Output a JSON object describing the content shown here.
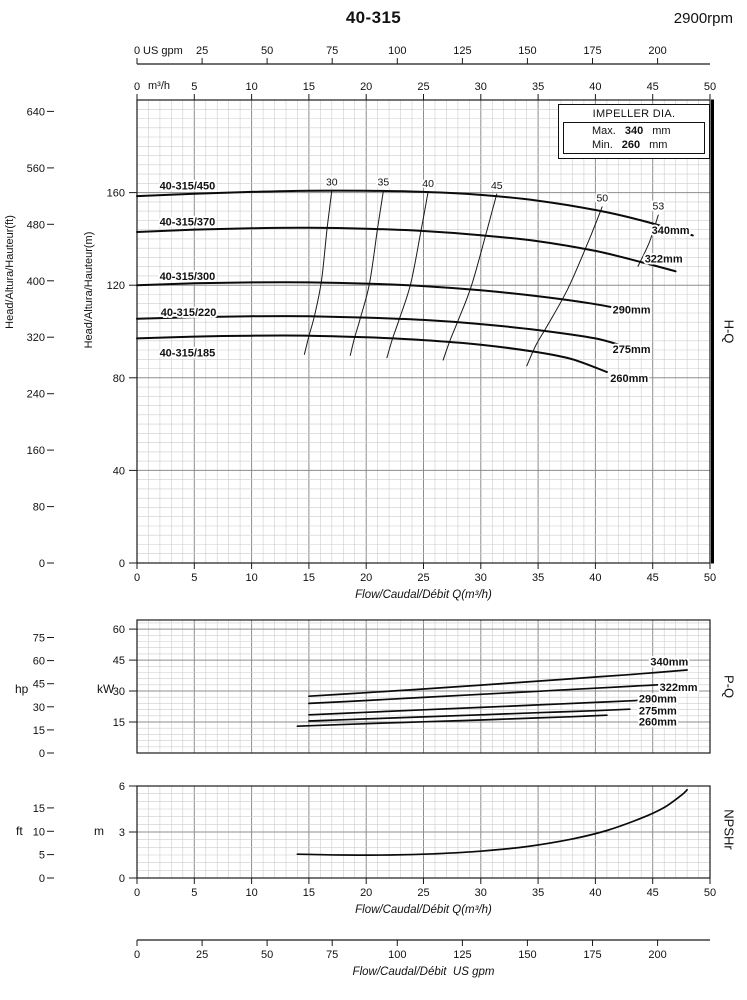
{
  "header": {
    "title": "40-315",
    "rpm": "2900rpm"
  },
  "impeller_box": {
    "title": "IMPELLER DIA.",
    "rows": [
      {
        "label": "Max.",
        "value": "340",
        "unit": "mm"
      },
      {
        "label": "Min.",
        "value": "260",
        "unit": "mm"
      }
    ]
  },
  "conversions": {
    "gpm_per_m3h": 4.4029,
    "ft_per_m": 3.2808,
    "kw_per_hp": 0.7457
  },
  "chart_data": [
    {
      "id": "hq",
      "type": "line",
      "title": "H-Q",
      "xlabel": "Flow/Caudal/Débit Q(m³/h)",
      "x_unit_label": "m³/h",
      "top_axis_unit": "US gpm",
      "ylabel_outer": "Head/Altura/Hauteur(ft)",
      "ylabel_inner": "Head/Altura/Hauteur(m)",
      "xlim": [
        0,
        50
      ],
      "ylim": [
        0,
        200
      ],
      "x_ticks": [
        0,
        5,
        10,
        15,
        20,
        25,
        30,
        35,
        40,
        45,
        50
      ],
      "gpm_ticks": [
        0,
        25,
        50,
        75,
        100,
        125,
        150,
        175,
        200
      ],
      "m_ticks": [
        0,
        40,
        80,
        120,
        160
      ],
      "ft_ticks": [
        0,
        80,
        160,
        240,
        320,
        400,
        480,
        560,
        640
      ],
      "grid": {
        "minor_x": 1,
        "major_x": 5,
        "minor_y": 4,
        "major_y": 40
      },
      "series": [
        {
          "name": "340mm",
          "model": "40-315/450",
          "points": [
            [
              0,
              158.5
            ],
            [
              5,
              159.5
            ],
            [
              10,
              160.3
            ],
            [
              15,
              160.8
            ],
            [
              20,
              160.8
            ],
            [
              25,
              160.3
            ],
            [
              30,
              159.0
            ],
            [
              35,
              156.5
            ],
            [
              40,
              152.5
            ],
            [
              44,
              148.0
            ],
            [
              48.5,
              141.5
            ]
          ],
          "label_at": [
            44.9,
            143.8
          ],
          "model_label_at": [
            4.4,
            163.0
          ]
        },
        {
          "name": "322mm",
          "model": "40-315/370",
          "points": [
            [
              0,
              143.0
            ],
            [
              5,
              144.0
            ],
            [
              10,
              144.6
            ],
            [
              15,
              144.8
            ],
            [
              20,
              144.4
            ],
            [
              25,
              143.4
            ],
            [
              30,
              141.6
            ],
            [
              35,
              139.0
            ],
            [
              40,
              134.8
            ],
            [
              44,
              130.0
            ],
            [
              47,
              126.0
            ]
          ],
          "label_at": [
            44.3,
            131.5
          ],
          "model_label_at": [
            4.4,
            147.5
          ]
        },
        {
          "name": "290mm",
          "model": "40-315/300",
          "points": [
            [
              0,
              120.0
            ],
            [
              5,
              120.8
            ],
            [
              10,
              121.2
            ],
            [
              15,
              121.2
            ],
            [
              20,
              120.7
            ],
            [
              25,
              119.6
            ],
            [
              30,
              117.8
            ],
            [
              35,
              115.2
            ],
            [
              40,
              111.8
            ],
            [
              44,
              108.0
            ]
          ],
          "label_at": [
            41.5,
            109.5
          ],
          "model_label_at": [
            4.4,
            124.0
          ]
        },
        {
          "name": "275mm",
          "model": "40-315/220",
          "points": [
            [
              0,
              105.5
            ],
            [
              5,
              106.2
            ],
            [
              10,
              106.6
            ],
            [
              15,
              106.6
            ],
            [
              20,
              106.0
            ],
            [
              25,
              105.0
            ],
            [
              30,
              103.2
            ],
            [
              35,
              100.6
            ],
            [
              40,
              97.0
            ],
            [
              42.5,
              93.5
            ]
          ],
          "label_at": [
            41.5,
            92.5
          ],
          "model_label_at": [
            4.5,
            108.5
          ]
        },
        {
          "name": "260mm",
          "model": "40-315/185",
          "points": [
            [
              0,
              97.0
            ],
            [
              5,
              97.8
            ],
            [
              10,
              98.2
            ],
            [
              15,
              98.2
            ],
            [
              20,
              97.5
            ],
            [
              25,
              96.3
            ],
            [
              30,
              94.3
            ],
            [
              35,
              91.0
            ],
            [
              38,
              88.0
            ],
            [
              41,
              82.5
            ]
          ],
          "label_at": [
            41.3,
            80.0
          ],
          "model_label_at": [
            4.4,
            91.0
          ]
        }
      ],
      "efficiency_lines": [
        {
          "label": "30",
          "points": [
            [
              17.0,
              160.8
            ],
            [
              16.6,
              145
            ],
            [
              16.1,
              122
            ],
            [
              15.5,
              107
            ],
            [
              15.0,
              98
            ],
            [
              14.6,
              90
            ]
          ]
        },
        {
          "label": "35",
          "points": [
            [
              21.5,
              160.8
            ],
            [
              21.0,
              145
            ],
            [
              20.3,
              121
            ],
            [
              19.5,
              106
            ],
            [
              19.0,
              97.5
            ],
            [
              18.6,
              89.5
            ]
          ]
        },
        {
          "label": "40",
          "points": [
            [
              25.4,
              160.3
            ],
            [
              24.8,
              144
            ],
            [
              23.9,
              121
            ],
            [
              22.9,
              105.5
            ],
            [
              22.3,
              97
            ],
            [
              21.8,
              88.5
            ]
          ]
        },
        {
          "label": "45",
          "points": [
            [
              31.4,
              159.5
            ],
            [
              30.5,
              143
            ],
            [
              29.2,
              120
            ],
            [
              28.0,
              104.5
            ],
            [
              27.3,
              96
            ],
            [
              26.7,
              87.5
            ]
          ]
        },
        {
          "label": "50",
          "points": [
            [
              40.6,
              154.0
            ],
            [
              39.4,
              139
            ],
            [
              37.6,
              118.5
            ],
            [
              35.8,
              102.5
            ],
            [
              34.8,
              94
            ],
            [
              34.0,
              85
            ]
          ]
        },
        {
          "label": "53",
          "points": [
            [
              45.5,
              150.5
            ],
            [
              44.7,
              138.5
            ],
            [
              43.7,
              128.0
            ]
          ]
        }
      ]
    },
    {
      "id": "pq",
      "type": "line",
      "title": "P-Q",
      "ylabel_outer": "hp",
      "ylabel_inner": "kW",
      "xlim": [
        0,
        50
      ],
      "ylim": [
        0,
        64.4
      ],
      "kw_ticks": [
        15,
        30,
        45,
        60
      ],
      "hp_ticks": [
        0,
        15,
        30,
        45,
        60,
        75
      ],
      "grid": {
        "minor_x": 1,
        "major_x": 5,
        "minor_y": 3,
        "major_y": 15
      },
      "series": [
        {
          "name": "340mm",
          "points": [
            [
              15,
              27.5
            ],
            [
              20,
              29.2
            ],
            [
              25,
              31.0
            ],
            [
              30,
              32.9
            ],
            [
              35,
              34.8
            ],
            [
              40,
              36.8
            ],
            [
              44,
              38.4
            ],
            [
              48,
              40.2
            ]
          ],
          "label_at": [
            44.8,
            44.3
          ]
        },
        {
          "name": "322mm",
          "points": [
            [
              15,
              24.0
            ],
            [
              20,
              25.4
            ],
            [
              25,
              26.9
            ],
            [
              30,
              28.4
            ],
            [
              35,
              29.9
            ],
            [
              40,
              31.4
            ],
            [
              44,
              32.6
            ],
            [
              47,
              33.5
            ]
          ],
          "label_at": [
            45.6,
            32.0
          ]
        },
        {
          "name": "290mm",
          "points": [
            [
              15,
              18.5
            ],
            [
              20,
              19.7
            ],
            [
              25,
              20.9
            ],
            [
              30,
              22.1
            ],
            [
              35,
              23.3
            ],
            [
              40,
              24.5
            ],
            [
              44,
              25.5
            ]
          ],
          "label_at": [
            43.8,
            26.3
          ]
        },
        {
          "name": "275mm",
          "points": [
            [
              15,
              15.5
            ],
            [
              20,
              16.5
            ],
            [
              25,
              17.5
            ],
            [
              30,
              18.5
            ],
            [
              35,
              19.5
            ],
            [
              40,
              20.5
            ],
            [
              43,
              21.2
            ]
          ],
          "label_at": [
            43.8,
            20.6
          ]
        },
        {
          "name": "260mm",
          "points": [
            [
              14,
              13.0
            ],
            [
              20,
              14.2
            ],
            [
              25,
              15.1
            ],
            [
              30,
              16.0
            ],
            [
              35,
              17.0
            ],
            [
              38,
              17.6
            ],
            [
              41,
              18.3
            ]
          ],
          "label_at": [
            43.8,
            15.2
          ]
        }
      ]
    },
    {
      "id": "npsh",
      "type": "line",
      "title": "NPSHr",
      "xlabel": "Flow/Caudal/Débit Q(m³/h)",
      "ylabel_outer": "ft",
      "ylabel_inner": "m",
      "xlim": [
        0,
        50
      ],
      "ylim": [
        0,
        6
      ],
      "x_ticks": [
        0,
        5,
        10,
        15,
        20,
        25,
        30,
        35,
        40,
        45,
        50
      ],
      "m_ticks": [
        0,
        3,
        6
      ],
      "ft_ticks": [
        0,
        5,
        10,
        15
      ],
      "grid": {
        "minor_x": 1,
        "major_x": 5,
        "minor_y": 0.5,
        "major_y": 3
      },
      "series": [
        {
          "name": "NPSHr",
          "points": [
            [
              14,
              1.55
            ],
            [
              18,
              1.5
            ],
            [
              22,
              1.5
            ],
            [
              26,
              1.58
            ],
            [
              30,
              1.75
            ],
            [
              34,
              2.05
            ],
            [
              38,
              2.55
            ],
            [
              41,
              3.1
            ],
            [
              44,
              3.9
            ],
            [
              46,
              4.6
            ],
            [
              47.5,
              5.4
            ],
            [
              48,
              5.75
            ]
          ]
        }
      ]
    },
    {
      "id": "gpm_axis",
      "type": "axis",
      "xlabel": "Flow/Caudal/Débit  US gpm",
      "gpm_ticks": [
        0,
        25,
        50,
        75,
        100,
        125,
        150,
        175,
        200
      ]
    }
  ]
}
